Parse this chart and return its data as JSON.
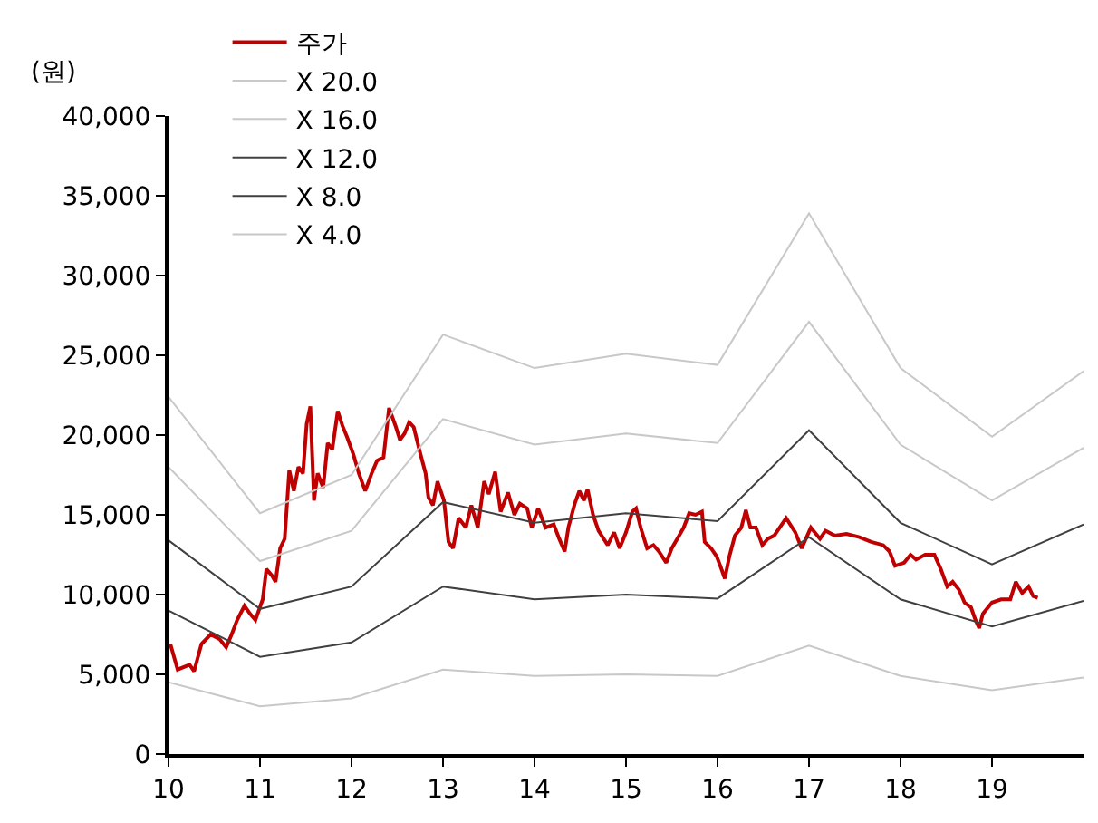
{
  "chart_data": {
    "type": "line",
    "ylabel": "(원)",
    "xlim": [
      10,
      20
    ],
    "xticks": [
      10,
      11,
      12,
      13,
      14,
      15,
      16,
      17,
      18,
      19
    ],
    "ylim": [
      0,
      40000
    ],
    "yticks": [
      {
        "value": 0,
        "label": "0"
      },
      {
        "value": 5000,
        "label": "5,000"
      },
      {
        "value": 10000,
        "label": "10,000"
      },
      {
        "value": 15000,
        "label": "15,000"
      },
      {
        "value": 20000,
        "label": "20,000"
      },
      {
        "value": 25000,
        "label": "25,000"
      },
      {
        "value": 30000,
        "label": "30,000"
      },
      {
        "value": 35000,
        "label": "35,000"
      },
      {
        "value": 40000,
        "label": "40,000"
      }
    ],
    "legend": "top left",
    "marker": "none",
    "line_style": "solid",
    "series": [
      {
        "name": "주가",
        "color": "#c00000",
        "x": [
          10.02,
          10.1,
          10.23,
          10.28,
          10.36,
          10.46,
          10.56,
          10.63,
          10.69,
          10.75,
          10.83,
          10.89,
          10.95,
          11.03,
          11.07,
          11.13,
          11.17,
          11.22,
          11.27,
          11.32,
          11.37,
          11.42,
          11.47,
          11.51,
          11.55,
          11.59,
          11.63,
          11.69,
          11.74,
          11.79,
          11.85,
          11.9,
          11.95,
          12.02,
          12.08,
          12.15,
          12.22,
          12.28,
          12.35,
          12.41,
          12.48,
          12.53,
          12.58,
          12.63,
          12.68,
          12.74,
          12.81,
          12.84,
          12.89,
          12.94,
          13.01,
          13.06,
          13.11,
          13.17,
          13.25,
          13.31,
          13.38,
          13.45,
          13.5,
          13.57,
          13.63,
          13.71,
          13.78,
          13.84,
          13.92,
          13.97,
          14.04,
          14.12,
          14.21,
          14.27,
          14.33,
          14.37,
          14.44,
          14.49,
          14.54,
          14.58,
          14.64,
          14.7,
          14.8,
          14.87,
          14.93,
          15.0,
          15.07,
          15.11,
          15.16,
          15.23,
          15.3,
          15.36,
          15.44,
          15.5,
          15.58,
          15.63,
          15.69,
          15.76,
          15.83,
          15.86,
          15.93,
          15.99,
          16.03,
          16.08,
          16.13,
          16.19,
          16.26,
          16.31,
          16.36,
          16.42,
          16.49,
          16.55,
          16.62,
          16.75,
          16.85,
          16.92,
          17.02,
          17.12,
          17.18,
          17.28,
          17.41,
          17.55,
          17.68,
          17.81,
          17.88,
          17.94,
          18.04,
          18.11,
          18.17,
          18.27,
          18.37,
          18.44,
          18.51,
          18.57,
          18.64,
          18.7,
          18.77,
          18.82,
          18.86,
          18.9,
          19.0,
          19.1,
          19.2,
          19.26,
          19.33,
          19.4,
          19.45,
          19.5
        ],
        "values": [
          6900,
          5300,
          5600,
          5200,
          6900,
          7500,
          7200,
          6700,
          7500,
          8400,
          9300,
          8800,
          8400,
          9700,
          11600,
          11200,
          10800,
          12900,
          13500,
          17800,
          16500,
          18000,
          17600,
          20700,
          21800,
          15900,
          17600,
          16700,
          19500,
          19100,
          21500,
          20600,
          19900,
          18800,
          17600,
          16500,
          17600,
          18400,
          18600,
          21700,
          20600,
          19700,
          20100,
          20800,
          20500,
          19100,
          17600,
          16100,
          15600,
          17100,
          15900,
          13300,
          12900,
          14800,
          14200,
          15600,
          14200,
          17100,
          16300,
          17700,
          15200,
          16400,
          15000,
          15700,
          15400,
          14200,
          15400,
          14200,
          14400,
          13500,
          12700,
          14200,
          15700,
          16500,
          15900,
          16600,
          15000,
          14000,
          13100,
          13900,
          12900,
          13900,
          15200,
          15400,
          14200,
          12900,
          13100,
          12700,
          12000,
          12900,
          13700,
          14200,
          15100,
          15000,
          15200,
          13300,
          12900,
          12400,
          11800,
          11000,
          12400,
          13700,
          14200,
          15300,
          14200,
          14200,
          13100,
          13500,
          13700,
          14800,
          13900,
          12900,
          14200,
          13500,
          14000,
          13700,
          13800,
          13600,
          13300,
          13100,
          12700,
          11800,
          12000,
          12500,
          12200,
          12500,
          12500,
          11600,
          10500,
          10800,
          10300,
          9500,
          9200,
          8400,
          7900,
          8800,
          9500,
          9700,
          9700,
          10800,
          10100,
          10500,
          9900,
          9800
        ]
      },
      {
        "name": "X 20.0",
        "color": "#c8c8c8",
        "x": [
          10,
          11,
          12,
          13,
          14,
          15,
          16,
          17,
          18,
          19,
          20
        ],
        "values": [
          22400,
          15100,
          17500,
          26300,
          24200,
          25100,
          24400,
          33900,
          24200,
          19900,
          24000
        ]
      },
      {
        "name": "X 16.0",
        "color": "#c8c8c8",
        "x": [
          10,
          11,
          12,
          13,
          14,
          15,
          16,
          17,
          18,
          19,
          20
        ],
        "values": [
          18000,
          12100,
          14000,
          21000,
          19400,
          20100,
          19500,
          27100,
          19400,
          15900,
          19200
        ]
      },
      {
        "name": "X 12.0",
        "color": "#404040",
        "x": [
          10,
          11,
          12,
          13,
          14,
          15,
          16,
          17,
          18,
          19,
          20
        ],
        "values": [
          13400,
          9100,
          10500,
          15800,
          14500,
          15100,
          14600,
          20300,
          14500,
          11900,
          14400
        ]
      },
      {
        "name": "X 8.0",
        "color": "#404040",
        "x": [
          10,
          11,
          12,
          13,
          14,
          15,
          16,
          17,
          18,
          19,
          20
        ],
        "values": [
          9000,
          6100,
          7000,
          10500,
          9700,
          10000,
          9750,
          13600,
          9700,
          8000,
          9600
        ]
      },
      {
        "name": "X 4.0",
        "color": "#c8c8c8",
        "x": [
          10,
          11,
          12,
          13,
          14,
          15,
          16,
          17,
          18,
          19,
          20
        ],
        "values": [
          4500,
          3000,
          3500,
          5300,
          4900,
          5000,
          4900,
          6800,
          4900,
          4000,
          4800
        ]
      }
    ]
  }
}
